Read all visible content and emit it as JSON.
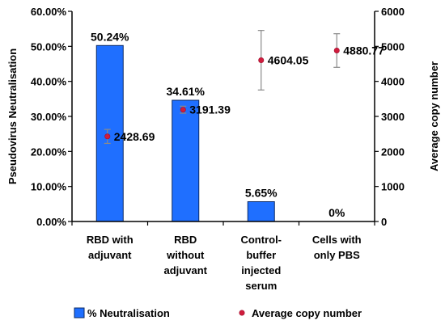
{
  "chart_data": {
    "type": "bar",
    "categories": [
      [
        "RBD with",
        "adjuvant"
      ],
      [
        "RBD",
        "without",
        "adjuvant"
      ],
      [
        "Control-",
        "buffer",
        "injected",
        "serum"
      ],
      [
        "Cells with",
        "only PBS"
      ]
    ],
    "ylabel": "Pseudovirus Neutralisation",
    "y2label": "Average copy number",
    "ylim": [
      0,
      60
    ],
    "y2lim": [
      0,
      6000
    ],
    "yticks": [
      "0.00%",
      "10.00%",
      "20.00%",
      "30.00%",
      "40.00%",
      "50.00%",
      "60.00%"
    ],
    "y2ticks": [
      "0",
      "1000",
      "2000",
      "3000",
      "4000",
      "5000",
      "6000"
    ],
    "grid": false,
    "legend_position": "bottom",
    "series": [
      {
        "name": "% Neutralisation",
        "kind": "bar",
        "color": "#1f6fff",
        "values": [
          50.24,
          34.61,
          5.65,
          0
        ],
        "labels": [
          "50.24%",
          "34.61%",
          "5.65%",
          "0%"
        ]
      },
      {
        "name": "Average copy number",
        "kind": "point",
        "axis": "right",
        "color": "#d01c3c",
        "values": [
          2428.69,
          3191.39,
          4604.05,
          4880.77
        ],
        "labels": [
          "2428.69",
          "3191.39",
          "4604.05",
          "4880.77"
        ],
        "error": [
          200,
          100,
          850,
          480
        ]
      }
    ]
  }
}
